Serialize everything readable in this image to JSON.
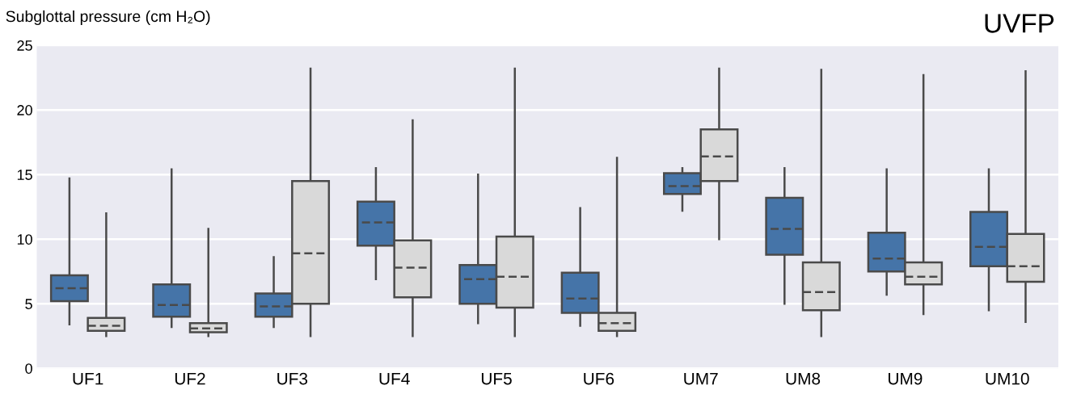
{
  "chart_data": {
    "type": "box",
    "title": "UVFP",
    "ylabel": "Subglottal pressure (cm H₂O)",
    "categories": [
      "UF1",
      "UF2",
      "UF3",
      "UF4",
      "UF5",
      "UF6",
      "UM7",
      "UM8",
      "UM9",
      "UM10"
    ],
    "ylim": [
      0,
      25
    ],
    "yticks": [
      0,
      5,
      10,
      15,
      20,
      25
    ],
    "grid": "y",
    "legend": false,
    "series": [
      {
        "color": "#4574a8",
        "boxes": [
          {
            "low": 3.4,
            "q1": 5.2,
            "median": 6.2,
            "q3": 7.2,
            "high": 14.7
          },
          {
            "low": 3.2,
            "q1": 4.0,
            "median": 4.9,
            "q3": 6.5,
            "high": 15.4
          },
          {
            "low": 3.2,
            "q1": 4.0,
            "median": 4.8,
            "q3": 5.8,
            "high": 8.6
          },
          {
            "low": 6.9,
            "q1": 9.5,
            "median": 11.3,
            "q3": 12.9,
            "high": 15.5
          },
          {
            "low": 3.5,
            "q1": 5.0,
            "median": 6.9,
            "q3": 8.0,
            "high": 15.0
          },
          {
            "low": 3.3,
            "q1": 4.3,
            "median": 5.4,
            "q3": 7.4,
            "high": 12.4
          },
          {
            "low": 12.2,
            "q1": 13.5,
            "median": 14.1,
            "q3": 15.1,
            "high": 15.5
          },
          {
            "low": 5.0,
            "q1": 8.8,
            "median": 10.8,
            "q3": 13.2,
            "high": 15.5
          },
          {
            "low": 5.7,
            "q1": 7.5,
            "median": 8.5,
            "q3": 10.5,
            "high": 15.4
          },
          {
            "low": 4.5,
            "q1": 7.9,
            "median": 9.4,
            "q3": 12.1,
            "high": 15.4
          }
        ]
      },
      {
        "color": "#d9d9d9",
        "boxes": [
          {
            "low": 2.5,
            "q1": 2.9,
            "median": 3.3,
            "q3": 3.9,
            "high": 12.0
          },
          {
            "low": 2.5,
            "q1": 2.8,
            "median": 3.1,
            "q3": 3.5,
            "high": 10.8
          },
          {
            "low": 2.5,
            "q1": 5.0,
            "median": 8.9,
            "q3": 14.5,
            "high": 23.2
          },
          {
            "low": 2.5,
            "q1": 5.5,
            "median": 7.8,
            "q3": 9.9,
            "high": 19.2
          },
          {
            "low": 2.5,
            "q1": 4.7,
            "median": 7.1,
            "q3": 10.2,
            "high": 23.2
          },
          {
            "low": 2.5,
            "q1": 2.9,
            "median": 3.5,
            "q3": 4.3,
            "high": 16.3
          },
          {
            "low": 10.0,
            "q1": 14.5,
            "median": 16.4,
            "q3": 18.5,
            "high": 23.2
          },
          {
            "low": 2.5,
            "q1": 4.5,
            "median": 5.9,
            "q3": 8.2,
            "high": 23.1
          },
          {
            "low": 4.2,
            "q1": 6.5,
            "median": 7.1,
            "q3": 8.2,
            "high": 22.7
          },
          {
            "low": 3.6,
            "q1": 6.7,
            "median": 7.9,
            "q3": 10.4,
            "high": 23.0
          }
        ]
      }
    ]
  }
}
